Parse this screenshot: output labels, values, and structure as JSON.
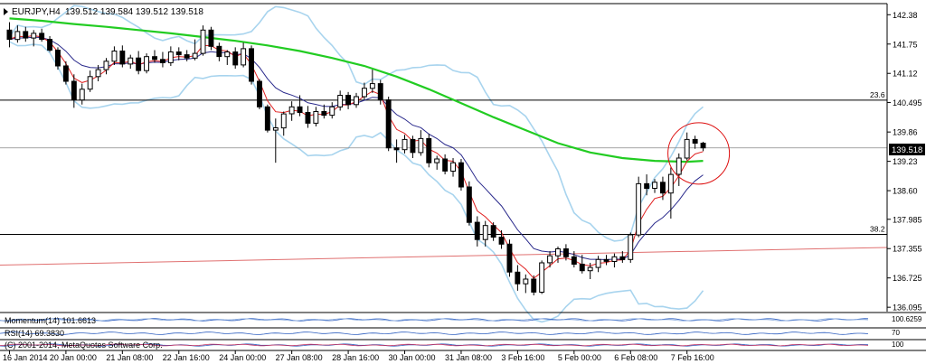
{
  "window": {
    "symbol_label": "EURJPY,H4",
    "ohlc_label": "139.512 139.584 139.512 139.518",
    "current_price_label": "139.518"
  },
  "fib_levels": [
    {
      "label": "23.6",
      "price": 140.545
    },
    {
      "label": "38.2",
      "price": 137.66
    }
  ],
  "indicators": {
    "momentum_label": "Momentum(14) 101.6613",
    "rsi_label": "RSI(14) 69.3830",
    "copyright_label": "(C) 2001-2014, MetaQuotes Software Corp.",
    "right_labels_momentum": "100.6259",
    "right_labels_rsi": "70",
    "right_labels_bottom": "100"
  },
  "colors": {
    "background": "#ffffff",
    "grid": "#c8d0d8",
    "candle": "#000000",
    "sma_long": "#22cc22",
    "ema_fast": "#e02020",
    "ema_mid": "#2a2a8c",
    "bollinger": "#a8d4ee",
    "trendline": "#e07070",
    "highlight_circle": "#dd1010",
    "price_box": "#000000"
  },
  "chart_data": {
    "type": "candlestick",
    "symbol": "EURJPY",
    "timeframe": "H4",
    "y_ticks": [
      142.38,
      141.75,
      141.12,
      140.495,
      139.86,
      139.23,
      138.6,
      137.985,
      137.355,
      136.725,
      136.095
    ],
    "y_tick_labels": [
      "142.38",
      "141.75",
      "141.12",
      "140.495",
      "139.86",
      "139.23",
      "138.60",
      "137.985",
      "137.355",
      "136.725",
      "136.095"
    ],
    "ylim": [
      136.04,
      142.58
    ],
    "x_tick_labels": [
      "16 Jan 2014",
      "20 Jan 00:00",
      "21 Jan 08:00",
      "22 Jan 16:00",
      "24 Jan 00:00",
      "27 Jan 08:00",
      "28 Jan 16:00",
      "30 Jan 00:00",
      "31 Jan 08:00",
      "3 Feb 16:00",
      "5 Feb 00:00",
      "6 Feb 08:00",
      "7 Feb 16:00"
    ],
    "candles": [
      {
        "o": 142.05,
        "h": 142.22,
        "l": 141.68,
        "c": 141.85
      },
      {
        "o": 141.85,
        "h": 142.15,
        "l": 141.78,
        "c": 142.02
      },
      {
        "o": 142.02,
        "h": 142.12,
        "l": 141.8,
        "c": 141.88
      },
      {
        "o": 141.88,
        "h": 142.05,
        "l": 141.7,
        "c": 141.98
      },
      {
        "o": 141.98,
        "h": 142.08,
        "l": 141.8,
        "c": 141.85
      },
      {
        "o": 141.85,
        "h": 141.92,
        "l": 141.58,
        "c": 141.62
      },
      {
        "o": 141.62,
        "h": 141.68,
        "l": 141.2,
        "c": 141.28
      },
      {
        "o": 141.28,
        "h": 141.38,
        "l": 140.88,
        "c": 140.95
      },
      {
        "o": 140.95,
        "h": 141.1,
        "l": 140.38,
        "c": 140.55
      },
      {
        "o": 140.55,
        "h": 140.9,
        "l": 140.45,
        "c": 140.78
      },
      {
        "o": 140.78,
        "h": 141.18,
        "l": 140.72,
        "c": 141.05
      },
      {
        "o": 141.05,
        "h": 141.3,
        "l": 140.95,
        "c": 141.2
      },
      {
        "o": 141.2,
        "h": 141.45,
        "l": 141.1,
        "c": 141.38
      },
      {
        "o": 141.38,
        "h": 141.7,
        "l": 141.3,
        "c": 141.6
      },
      {
        "o": 141.6,
        "h": 141.72,
        "l": 141.25,
        "c": 141.32
      },
      {
        "o": 141.32,
        "h": 141.52,
        "l": 141.22,
        "c": 141.45
      },
      {
        "o": 141.45,
        "h": 141.6,
        "l": 141.1,
        "c": 141.18
      },
      {
        "o": 141.18,
        "h": 141.55,
        "l": 141.12,
        "c": 141.48
      },
      {
        "o": 141.48,
        "h": 141.62,
        "l": 141.35,
        "c": 141.42
      },
      {
        "o": 141.42,
        "h": 141.58,
        "l": 141.25,
        "c": 141.35
      },
      {
        "o": 141.35,
        "h": 141.7,
        "l": 141.28,
        "c": 141.58
      },
      {
        "o": 141.58,
        "h": 141.68,
        "l": 141.4,
        "c": 141.52
      },
      {
        "o": 141.52,
        "h": 141.62,
        "l": 141.38,
        "c": 141.45
      },
      {
        "o": 141.45,
        "h": 141.85,
        "l": 141.4,
        "c": 141.55
      },
      {
        "o": 141.55,
        "h": 142.15,
        "l": 141.5,
        "c": 142.05
      },
      {
        "o": 142.05,
        "h": 142.12,
        "l": 141.62,
        "c": 141.7
      },
      {
        "o": 141.7,
        "h": 141.78,
        "l": 141.38,
        "c": 141.48
      },
      {
        "o": 141.48,
        "h": 141.62,
        "l": 141.3,
        "c": 141.58
      },
      {
        "o": 141.58,
        "h": 141.68,
        "l": 141.22,
        "c": 141.3
      },
      {
        "o": 141.3,
        "h": 141.78,
        "l": 141.25,
        "c": 141.65
      },
      {
        "o": 141.65,
        "h": 141.72,
        "l": 140.88,
        "c": 140.95
      },
      {
        "o": 140.95,
        "h": 141.0,
        "l": 140.35,
        "c": 140.4
      },
      {
        "o": 140.4,
        "h": 140.45,
        "l": 139.85,
        "c": 139.9
      },
      {
        "o": 139.9,
        "h": 140.15,
        "l": 139.2,
        "c": 139.95
      },
      {
        "o": 139.95,
        "h": 140.3,
        "l": 139.78,
        "c": 140.25
      },
      {
        "o": 140.25,
        "h": 140.52,
        "l": 140.1,
        "c": 140.4
      },
      {
        "o": 140.4,
        "h": 140.65,
        "l": 140.2,
        "c": 140.28
      },
      {
        "o": 140.28,
        "h": 140.42,
        "l": 139.95,
        "c": 140.05
      },
      {
        "o": 140.05,
        "h": 140.4,
        "l": 139.98,
        "c": 140.3
      },
      {
        "o": 140.3,
        "h": 140.45,
        "l": 140.15,
        "c": 140.22
      },
      {
        "o": 140.22,
        "h": 140.5,
        "l": 140.15,
        "c": 140.4
      },
      {
        "o": 140.4,
        "h": 140.75,
        "l": 140.32,
        "c": 140.65
      },
      {
        "o": 140.65,
        "h": 140.72,
        "l": 140.35,
        "c": 140.45
      },
      {
        "o": 140.45,
        "h": 140.7,
        "l": 140.38,
        "c": 140.62
      },
      {
        "o": 140.62,
        "h": 140.92,
        "l": 140.55,
        "c": 140.8
      },
      {
        "o": 140.8,
        "h": 141.2,
        "l": 140.7,
        "c": 140.9
      },
      {
        "o": 140.9,
        "h": 140.98,
        "l": 140.45,
        "c": 140.55
      },
      {
        "o": 140.55,
        "h": 140.62,
        "l": 139.45,
        "c": 139.52
      },
      {
        "o": 139.52,
        "h": 139.7,
        "l": 139.2,
        "c": 139.48
      },
      {
        "o": 139.48,
        "h": 139.8,
        "l": 139.4,
        "c": 139.7
      },
      {
        "o": 139.7,
        "h": 139.78,
        "l": 139.3,
        "c": 139.42
      },
      {
        "o": 139.42,
        "h": 139.9,
        "l": 139.35,
        "c": 139.72
      },
      {
        "o": 139.72,
        "h": 139.82,
        "l": 139.1,
        "c": 139.2
      },
      {
        "o": 139.2,
        "h": 139.35,
        "l": 139.05,
        "c": 139.28
      },
      {
        "o": 139.28,
        "h": 139.38,
        "l": 138.95,
        "c": 139.02
      },
      {
        "o": 139.02,
        "h": 139.3,
        "l": 138.9,
        "c": 139.2
      },
      {
        "o": 139.2,
        "h": 139.28,
        "l": 138.6,
        "c": 138.68
      },
      {
        "o": 138.68,
        "h": 138.8,
        "l": 137.85,
        "c": 137.92
      },
      {
        "o": 137.92,
        "h": 138.05,
        "l": 137.4,
        "c": 137.55
      },
      {
        "o": 137.55,
        "h": 137.95,
        "l": 137.4,
        "c": 137.85
      },
      {
        "o": 137.85,
        "h": 137.92,
        "l": 137.52,
        "c": 137.6
      },
      {
        "o": 137.6,
        "h": 137.75,
        "l": 137.35,
        "c": 137.45
      },
      {
        "o": 137.45,
        "h": 137.55,
        "l": 136.75,
        "c": 136.85
      },
      {
        "o": 136.85,
        "h": 137.0,
        "l": 136.45,
        "c": 136.6
      },
      {
        "o": 136.6,
        "h": 136.8,
        "l": 136.4,
        "c": 136.7
      },
      {
        "o": 136.7,
        "h": 136.78,
        "l": 136.35,
        "c": 136.42
      },
      {
        "o": 136.42,
        "h": 137.1,
        "l": 136.38,
        "c": 137.05
      },
      {
        "o": 137.05,
        "h": 137.3,
        "l": 136.95,
        "c": 137.2
      },
      {
        "o": 137.2,
        "h": 137.4,
        "l": 137.05,
        "c": 137.35
      },
      {
        "o": 137.35,
        "h": 137.45,
        "l": 137.1,
        "c": 137.18
      },
      {
        "o": 137.18,
        "h": 137.3,
        "l": 136.95,
        "c": 137.02
      },
      {
        "o": 137.02,
        "h": 137.22,
        "l": 136.82,
        "c": 136.88
      },
      {
        "o": 136.88,
        "h": 137.05,
        "l": 136.7,
        "c": 136.95
      },
      {
        "o": 136.95,
        "h": 137.2,
        "l": 136.85,
        "c": 137.12
      },
      {
        "o": 137.12,
        "h": 137.22,
        "l": 137.0,
        "c": 137.08
      },
      {
        "o": 137.08,
        "h": 137.25,
        "l": 136.95,
        "c": 137.18
      },
      {
        "o": 137.18,
        "h": 137.3,
        "l": 137.05,
        "c": 137.12
      },
      {
        "o": 137.12,
        "h": 137.7,
        "l": 137.05,
        "c": 137.65
      },
      {
        "o": 137.65,
        "h": 138.9,
        "l": 137.6,
        "c": 138.75
      },
      {
        "o": 138.75,
        "h": 138.95,
        "l": 138.5,
        "c": 138.65
      },
      {
        "o": 138.65,
        "h": 138.85,
        "l": 138.55,
        "c": 138.78
      },
      {
        "o": 138.78,
        "h": 138.9,
        "l": 138.4,
        "c": 138.55
      },
      {
        "o": 138.55,
        "h": 139.1,
        "l": 138.0,
        "c": 138.95
      },
      {
        "o": 138.95,
        "h": 139.4,
        "l": 138.7,
        "c": 139.3
      },
      {
        "o": 139.3,
        "h": 139.85,
        "l": 139.25,
        "c": 139.7
      },
      {
        "o": 139.7,
        "h": 139.78,
        "l": 139.5,
        "c": 139.62
      },
      {
        "o": 139.62,
        "h": 139.65,
        "l": 139.45,
        "c": 139.52
      }
    ],
    "sma_long": [
      142.3,
      142.25,
      142.18,
      142.12,
      142.05,
      141.98,
      141.9,
      141.82,
      141.72,
      141.6,
      141.45,
      141.28,
      141.05,
      140.78,
      140.48,
      140.18,
      139.9,
      139.62,
      139.42,
      139.3,
      139.24,
      139.22,
      139.24,
      139.24
    ],
    "sma_long_step_x": 4
  }
}
